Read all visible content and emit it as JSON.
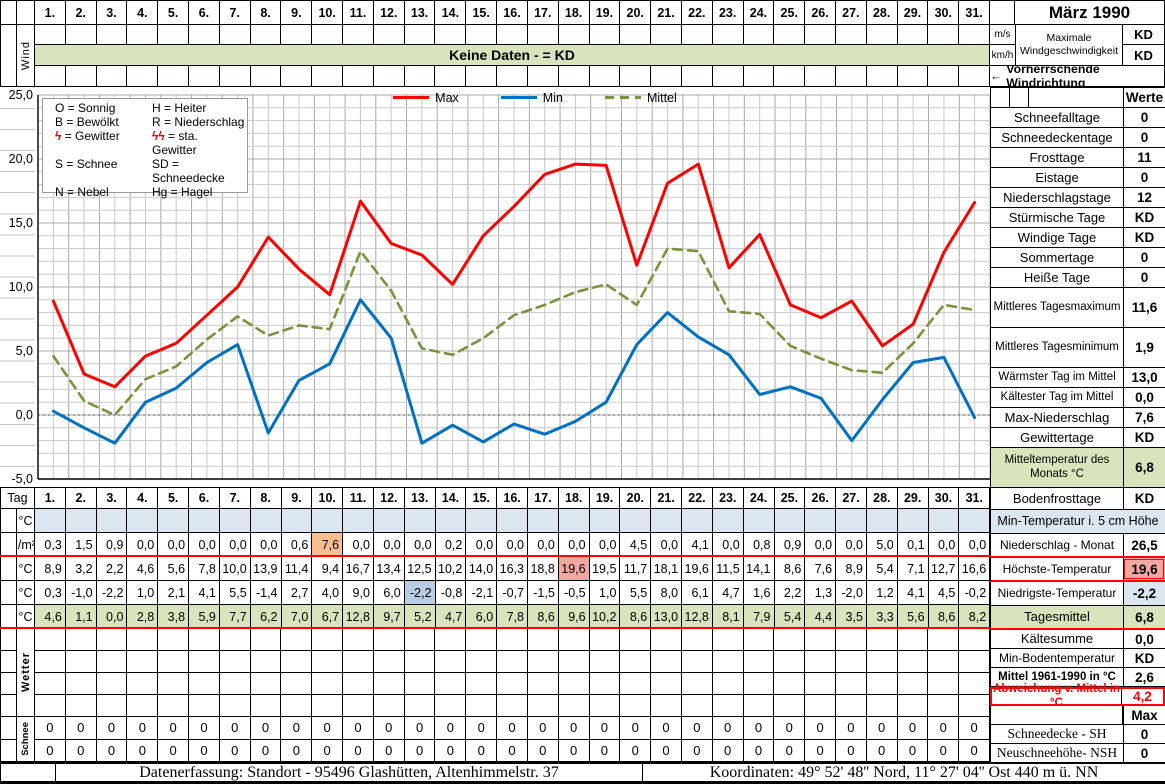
{
  "title": "März 1990",
  "days": [
    "1.",
    "2.",
    "3.",
    "4.",
    "5.",
    "6.",
    "7.",
    "8.",
    "9.",
    "10.",
    "11.",
    "12.",
    "13.",
    "14.",
    "15.",
    "16.",
    "17.",
    "18.",
    "19.",
    "20.",
    "21.",
    "22.",
    "23.",
    "24.",
    "25.",
    "26.",
    "27.",
    "28.",
    "29.",
    "30.",
    "31."
  ],
  "icons": {
    "left_arrow": "←"
  },
  "wind": {
    "label": "Wind",
    "banner": "Keine Daten -  = KD",
    "unit_ms": "m/s",
    "unit_kmh": "km/h",
    "max_label": "Maximale Windgeschwindigkeit",
    "max_ms": "KD",
    "max_kmh": "KD",
    "direction": "Vorherrschende Windrichtung"
  },
  "colors": {
    "max_line": "#ff0000",
    "min_line": "#0070c0",
    "mean_line": "#77933c",
    "band_green": "#d7e4bc",
    "row_blue": "#dce6f1",
    "cell_orange": "#fabf8f",
    "cell_pink": "#f2a7a1",
    "cell_blue": "#b8cce4",
    "highlight_red": "#ff0000"
  },
  "chart_data": {
    "type": "line",
    "x": [
      1,
      2,
      3,
      4,
      5,
      6,
      7,
      8,
      9,
      10,
      11,
      12,
      13,
      14,
      15,
      16,
      17,
      18,
      19,
      20,
      21,
      22,
      23,
      24,
      25,
      26,
      27,
      28,
      29,
      30,
      31
    ],
    "series": [
      {
        "name": "Max",
        "color": "#ff0000",
        "style": "solid",
        "values": [
          8.9,
          3.2,
          2.2,
          4.6,
          5.6,
          7.8,
          10.0,
          13.9,
          11.4,
          9.4,
          16.7,
          13.4,
          12.5,
          10.2,
          14.0,
          16.3,
          18.8,
          19.6,
          19.5,
          11.7,
          18.1,
          19.6,
          11.5,
          14.1,
          8.6,
          7.6,
          8.9,
          5.4,
          7.1,
          12.7,
          16.6
        ]
      },
      {
        "name": "Min",
        "color": "#0070c0",
        "style": "solid",
        "values": [
          0.3,
          -1.0,
          -2.2,
          1.0,
          2.1,
          4.1,
          5.5,
          -1.4,
          2.7,
          4.0,
          9.0,
          6.0,
          -2.2,
          -0.8,
          -2.1,
          -0.7,
          -1.5,
          -0.5,
          1.0,
          5.5,
          8.0,
          6.1,
          4.7,
          1.6,
          2.2,
          1.3,
          -2.0,
          1.2,
          4.1,
          4.5,
          -0.2
        ]
      },
      {
        "name": "Mittel",
        "color": "#77933c",
        "style": "dashed",
        "values": [
          4.6,
          1.1,
          0.0,
          2.8,
          3.8,
          5.9,
          7.7,
          6.2,
          7.0,
          6.7,
          12.8,
          9.7,
          5.2,
          4.7,
          6.0,
          7.8,
          8.6,
          9.6,
          10.2,
          8.6,
          13.0,
          12.8,
          8.1,
          7.9,
          5.4,
          4.4,
          3.5,
          3.3,
          5.6,
          8.6,
          8.2
        ]
      }
    ],
    "ylim": [
      -5,
      25
    ],
    "yticks": [
      "25,0",
      "20,0",
      "15,0",
      "10,0",
      "5,0",
      "0,0",
      "-5,0"
    ],
    "grid": "minor 1°C x 0.5 day, zero line dotted",
    "legend_position": "top-center"
  },
  "symbol_legend": {
    "rows": [
      [
        {
          "s": "O",
          "t": "Sonnig"
        },
        {
          "s": "H",
          "t": "Heiter"
        }
      ],
      [
        {
          "s": "B",
          "t": "Bewölkt"
        },
        {
          "s": "R",
          "t": "Niederschlag"
        }
      ],
      [
        {
          "s": "ϟ",
          "t": "Gewitter",
          "r": true
        },
        {
          "s": "ϟϟ",
          "t": "sta. Gewitter",
          "r": true
        }
      ],
      [
        {
          "s": "S",
          "t": "Schnee"
        },
        {
          "s": "SD",
          "t": "Schneedecke"
        }
      ],
      [
        {
          "s": "N",
          "t": "Nebel"
        },
        {
          "s": "Hg",
          "t": "Hagel"
        }
      ]
    ]
  },
  "table": {
    "tag_label": "Tag",
    "wetter_label": "Wetter",
    "schnee_label": "Schnee",
    "rows": [
      {
        "unit": "°C",
        "name": "min-temperatur-5cm",
        "values": []
      },
      {
        "unit": "l/m²",
        "name": "niederschlag",
        "values": [
          "0,3",
          "1,5",
          "0,9",
          "0,0",
          "0,0",
          "0,0",
          "0,0",
          "0,0",
          "0,6",
          "7,6",
          "0,0",
          "0,0",
          "0,0",
          "0,2",
          "0,0",
          "0,0",
          "0,0",
          "0,0",
          "0,0",
          "4,5",
          "0,0",
          "4,1",
          "0,0",
          "0,8",
          "0,9",
          "0,0",
          "0,0",
          "5,0",
          "0,1",
          "0,0",
          "0,0"
        ],
        "highlights": {
          "9": "orange"
        }
      },
      {
        "unit": "°C",
        "name": "hoechste-temperatur",
        "values": [
          "8,9",
          "3,2",
          "2,2",
          "4,6",
          "5,6",
          "7,8",
          "10,0",
          "13,9",
          "11,4",
          "9,4",
          "16,7",
          "13,4",
          "12,5",
          "10,2",
          "14,0",
          "16,3",
          "18,8",
          "19,6",
          "19,5",
          "11,7",
          "18,1",
          "19,6",
          "11,5",
          "14,1",
          "8,6",
          "7,6",
          "8,9",
          "5,4",
          "7,1",
          "12,7",
          "16,6"
        ],
        "highlights": {
          "17": "pink"
        }
      },
      {
        "unit": "°C",
        "name": "niedrigste-temperatur",
        "values": [
          "0,3",
          "-1,0",
          "-2,2",
          "1,0",
          "2,1",
          "4,1",
          "5,5",
          "-1,4",
          "2,7",
          "4,0",
          "9,0",
          "6,0",
          "-2,2",
          "-0,8",
          "-2,1",
          "-0,7",
          "-1,5",
          "-0,5",
          "1,0",
          "5,5",
          "8,0",
          "6,1",
          "4,7",
          "1,6",
          "2,2",
          "1,3",
          "-2,0",
          "1,2",
          "4,1",
          "4,5",
          "-0,2"
        ],
        "highlights": {
          "12": "blue"
        }
      },
      {
        "unit": "°C",
        "name": "tagesmittel",
        "values": [
          "4,6",
          "1,1",
          "0,0",
          "2,8",
          "3,8",
          "5,9",
          "7,7",
          "6,2",
          "7,0",
          "6,7",
          "12,8",
          "9,7",
          "5,2",
          "4,7",
          "6,0",
          "7,8",
          "8,6",
          "9,6",
          "10,2",
          "8,6",
          "13,0",
          "12,8",
          "8,1",
          "7,9",
          "5,4",
          "4,4",
          "3,5",
          "3,3",
          "5,6",
          "8,6",
          "8,2"
        ]
      }
    ],
    "schnee_rows": [
      [
        "0",
        "0",
        "0",
        "0",
        "0",
        "0",
        "0",
        "0",
        "0",
        "0",
        "0",
        "0",
        "0",
        "0",
        "0",
        "0",
        "0",
        "0",
        "0",
        "0",
        "0",
        "0",
        "0",
        "0",
        "0",
        "0",
        "0",
        "0",
        "0",
        "0",
        "0"
      ],
      [
        "0",
        "0",
        "0",
        "0",
        "0",
        "0",
        "0",
        "0",
        "0",
        "0",
        "0",
        "0",
        "0",
        "0",
        "0",
        "0",
        "0",
        "0",
        "0",
        "0",
        "0",
        "0",
        "0",
        "0",
        "0",
        "0",
        "0",
        "0",
        "0",
        "0",
        "0"
      ]
    ]
  },
  "stats": [
    {
      "label": "",
      "value": "Werte",
      "size": "standard",
      "flags": [
        "werte"
      ]
    },
    {
      "label": "Schneefalltage",
      "value": "0",
      "size": "standard",
      "flags": []
    },
    {
      "label": "Schneedeckentage",
      "value": "0",
      "size": "standard",
      "flags": []
    },
    {
      "label": "Frosttage",
      "value": "11",
      "size": "standard",
      "flags": []
    },
    {
      "label": "Eistage",
      "value": "0",
      "size": "standard",
      "flags": []
    },
    {
      "label": "Niederschlagstage",
      "value": "12",
      "size": "standard",
      "flags": []
    },
    {
      "label": "Stürmische Tage",
      "value": "KD",
      "size": "standard",
      "flags": []
    },
    {
      "label": "Windige Tage",
      "value": "KD",
      "size": "standard",
      "flags": []
    },
    {
      "label": "Sommertage",
      "value": "0",
      "size": "standard",
      "flags": []
    },
    {
      "label": "Heiße Tage",
      "value": "0",
      "size": "standard",
      "flags": []
    },
    {
      "label": "Mittleres Tagesmaximum",
      "value": "11,6",
      "size": "double",
      "flags": []
    },
    {
      "label": "Mittleres Tagesminimum",
      "value": "1,9",
      "size": "double",
      "flags": []
    },
    {
      "label": "Wärmster Tag im Mittel",
      "value": "13,0",
      "size": "standard",
      "flags": []
    },
    {
      "label": "Kältester Tag im Mittel",
      "value": "0,0",
      "size": "standard",
      "flags": []
    },
    {
      "label": "Max-Niederschlag",
      "value": "7,6",
      "size": "standard",
      "flags": []
    },
    {
      "label": "Gewittertage",
      "value": "KD",
      "size": "standard",
      "flags": []
    },
    {
      "label": "Mitteltemperatur des Monats °C",
      "value": "6,8",
      "size": "double",
      "flags": [
        "green"
      ]
    },
    {
      "label": "Bodenfrosttage",
      "value": "KD",
      "size": "cellsm",
      "flags": []
    },
    {
      "label": "Min-Temperatur i. 5 cm Höhe",
      "value": "",
      "size": "cell",
      "flags": [
        "fullblue"
      ]
    },
    {
      "label": "Niederschlag - Monat",
      "value": "26,5",
      "size": "cell",
      "flags": [
        "redb"
      ]
    },
    {
      "label": "Höchste-Temperatur",
      "value": "19,6",
      "size": "cell",
      "flags": [
        "redb",
        "vpink"
      ]
    },
    {
      "label": "Niedrigste-Temperatur",
      "value": "-2,2",
      "size": "cell",
      "flags": [
        "vblue"
      ]
    },
    {
      "label": "Tagesmittel",
      "value": "6,8",
      "size": "cell",
      "flags": [
        "green",
        "redb"
      ]
    },
    {
      "label": "Kältesumme",
      "value": "0,0",
      "size": "short",
      "flags": []
    },
    {
      "label": "Min-Bodentemperatur",
      "value": "KD",
      "size": "short",
      "flags": []
    },
    {
      "label": "Mittel 1961-1990 in °C",
      "value": "2,6",
      "size": "short",
      "flags": [
        "boldlabel"
      ]
    },
    {
      "label": "Abweichung v. Mittel in °C",
      "value": "4,2",
      "size": "short",
      "flags": [
        "redrow"
      ]
    },
    {
      "label": "",
      "value": "Max",
      "size": "short",
      "flags": [
        "maxheader"
      ]
    },
    {
      "label": "Schneedecke -   SH",
      "value": "0",
      "size": "short",
      "flags": [
        "serif"
      ]
    },
    {
      "label": "Neuschneehöhe- NSH",
      "value": "0",
      "size": "short",
      "flags": [
        "serif"
      ]
    }
  ],
  "footer": {
    "left": "Datenerfassung:  Standort -  95496  Glashütten, Altenhimmelstr. 37",
    "right": "Koordinaten:  49° 52' 48'' Nord,   11° 27' 04'' Ost   440 m ü. NN"
  }
}
